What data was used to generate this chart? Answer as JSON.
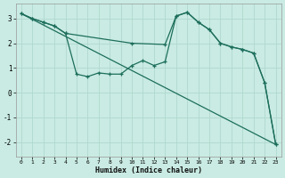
{
  "xlabel": "Humidex (Indice chaleur)",
  "xlim": [
    -0.5,
    23.5
  ],
  "ylim": [
    -2.6,
    3.6
  ],
  "xticks": [
    0,
    1,
    2,
    3,
    4,
    5,
    6,
    7,
    8,
    9,
    10,
    11,
    12,
    13,
    14,
    15,
    16,
    17,
    18,
    19,
    20,
    21,
    22,
    23
  ],
  "yticks": [
    -2,
    -1,
    0,
    1,
    2,
    3
  ],
  "bg_color": "#c9ebe3",
  "grid_color": "#b0d8ce",
  "line_color": "#1d6e5c",
  "line1_x": [
    0,
    1,
    2,
    3,
    4,
    5,
    6,
    7,
    8,
    9,
    10,
    11,
    12,
    13,
    14,
    15,
    16,
    17,
    18,
    19,
    20,
    21,
    22,
    23
  ],
  "line1_y": [
    3.2,
    3.0,
    2.85,
    2.7,
    2.4,
    0.75,
    0.65,
    0.8,
    0.75,
    0.75,
    1.1,
    1.3,
    1.1,
    1.25,
    3.1,
    3.25,
    2.85,
    2.55,
    2.0,
    1.85,
    1.75,
    1.6,
    0.4,
    -2.1
  ],
  "line2_x": [
    0,
    23
  ],
  "line2_y": [
    3.2,
    -2.1
  ],
  "line3_x": [
    0,
    1,
    2,
    3,
    4,
    10,
    13,
    14,
    15,
    16,
    17,
    18,
    19,
    20,
    21,
    22,
    23
  ],
  "line3_y": [
    3.2,
    3.0,
    2.85,
    2.7,
    2.4,
    2.0,
    1.95,
    3.1,
    3.25,
    2.85,
    2.55,
    2.0,
    1.85,
    1.75,
    1.6,
    0.4,
    -2.1
  ]
}
